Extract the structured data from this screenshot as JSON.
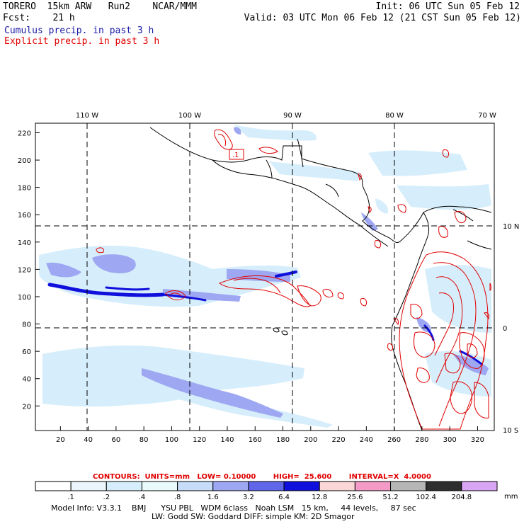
{
  "header": {
    "model": "TORERO  15km ARW   Run2    NCAR/MMM",
    "init": "Init: 06 UTC Sun 05 Feb 12",
    "fcst": "Fcst:    21 h",
    "valid": "Valid: 03 UTC Mon 06 Feb 12 (21 CST Sun 05 Feb 12)",
    "legend_cumulus": "Cumulus precip. in past 3 h",
    "legend_explicit": "Explicit precip. in past 3 h"
  },
  "map": {
    "y_ticks": [
      "220",
      "200",
      "180",
      "160",
      "140",
      "120",
      "100",
      "80",
      "60",
      "40",
      "20"
    ],
    "x_ticks": [
      "20",
      "40",
      "60",
      "80",
      "100",
      "120",
      "140",
      "160",
      "180",
      "200",
      "220",
      "240",
      "260",
      "280",
      "300",
      "320"
    ],
    "lon_labels": [
      "110 W",
      "100 W",
      "90 W",
      "80 W",
      "70 W"
    ],
    "lat_labels": [
      "10 N",
      "0",
      "10 S"
    ],
    "box_label": ".1"
  },
  "contours_line": "CONTOURS:  UNITS=mm   LOW= 0.10000       HIGH=  25.600       INTERVAL=X  4.0000",
  "colorbar": {
    "values": [
      ".1",
      ".2",
      ".4",
      ".8",
      "1.6",
      "3.2",
      "6.4",
      "12.8",
      "25.6",
      "51.2",
      "102.4",
      "204.8"
    ],
    "unit": "mm",
    "colors": [
      "#ffffff",
      "#eaf6fb",
      "#d6eefb",
      "#eafbfb",
      "#c6dcf8",
      "#9ea8f2",
      "#5f66ea",
      "#1010dd",
      "#fbd6d6",
      "#f39ac6",
      "#b6b6b6",
      "#2e2e2e",
      "#d9a6f5"
    ]
  },
  "model_info": {
    "line1": "Model Info: V3.3.1    BMJ      YSU PBL   WDM 6class   Noah LSM   15 km,     44 levels,     87 sec",
    "line2": "LW: Godd SW: Goddard DIFF: simple KM: 2D Smagor"
  },
  "colors": {
    "cumulus": "#1a1aa6",
    "explicit": "#e00000",
    "light_precip": "#d6eefb",
    "medium_precip": "#9ea8f2",
    "heavy_precip": "#1010dd"
  }
}
